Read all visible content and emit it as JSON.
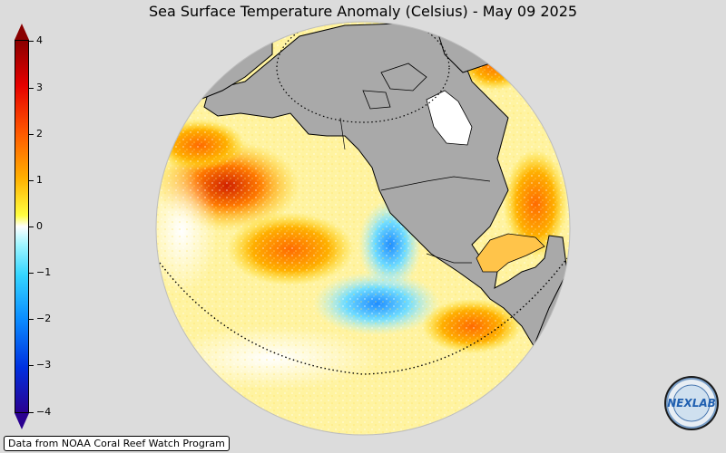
{
  "title": "Sea Surface Temperature Anomaly (Celsius) - May 09 2025",
  "colorbar": {
    "ticks": [
      "4",
      "3",
      "2",
      "1",
      "0",
      "−1",
      "−2",
      "−3",
      "−4"
    ],
    "colors": {
      "max": "#8a0000",
      "high": "#e60000",
      "warm": "#ffb000",
      "neutral": "#ffffff",
      "cool": "#35d6ff",
      "cold": "#0030e0",
      "min": "#2a0090"
    }
  },
  "credit": "Data from NOAA Coral Reef Watch Program",
  "logo": {
    "text": "NEXLAB"
  },
  "map": {
    "land_color": "#a9a9a9",
    "background_color": "#dcdcdc"
  }
}
